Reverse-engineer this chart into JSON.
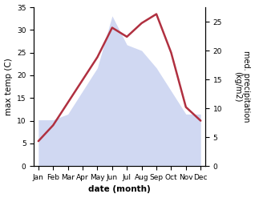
{
  "months": [
    "Jan",
    "Feb",
    "Mar",
    "Apr",
    "May",
    "Jun",
    "Jul",
    "Aug",
    "Sep",
    "Oct",
    "Nov",
    "Dec"
  ],
  "max_temp": [
    5.5,
    9.0,
    14.0,
    19.0,
    24.0,
    30.5,
    28.5,
    31.5,
    33.5,
    25.0,
    13.0,
    10.0
  ],
  "precipitation": [
    8.0,
    8.0,
    9.0,
    13.0,
    17.0,
    26.0,
    21.0,
    20.0,
    17.0,
    13.0,
    9.0,
    9.0
  ],
  "temp_ylim": [
    0,
    35
  ],
  "precip_ylim": [
    0,
    27.5
  ],
  "temp_yticks": [
    0,
    5,
    10,
    15,
    20,
    25,
    30,
    35
  ],
  "precip_yticks": [
    0,
    5,
    10,
    15,
    20,
    25
  ],
  "xlabel": "date (month)",
  "ylabel_left": "max temp (C)",
  "ylabel_right": "med. precipitation\n(kg/m2)",
  "fill_color": "#aab8e8",
  "fill_alpha": 0.55,
  "line_color": "#b03040",
  "line_width": 1.8,
  "bg_color": "#ffffff",
  "label_fontsize": 7.5,
  "tick_fontsize": 6.5
}
